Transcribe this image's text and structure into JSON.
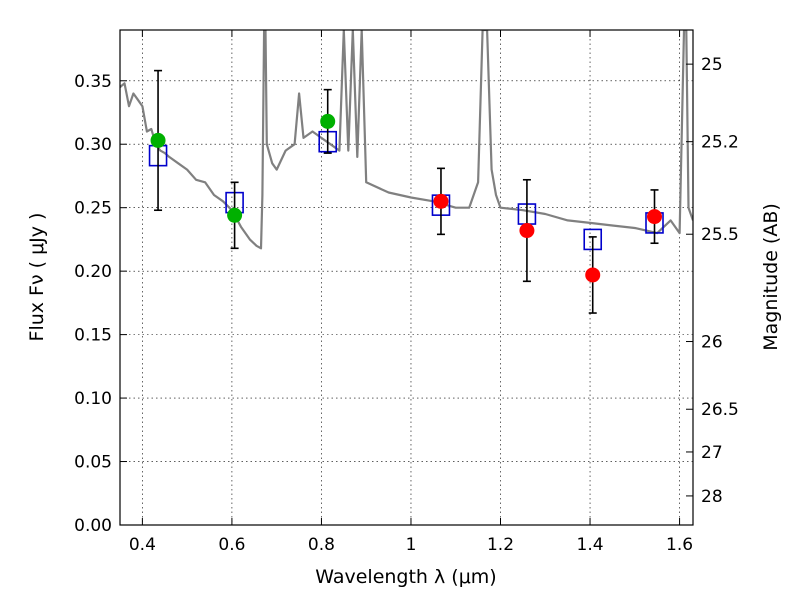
{
  "chart_data": {
    "type": "scatter",
    "xlabel": "Wavelength  λ (μm)",
    "ylabel": "Flux  Fν  ( μJy )",
    "y2label": "Magnitude (AB)",
    "xlim": [
      0.35,
      1.63
    ],
    "ylim": [
      0.0,
      0.39
    ],
    "grid": true,
    "x_ticks": [
      0.4,
      0.6,
      0.8,
      1.0,
      1.2,
      1.4,
      1.6
    ],
    "x_tick_labels": [
      "0.4",
      "0.6",
      "0.8",
      "1",
      "1.2",
      "1.4",
      "1.6"
    ],
    "y_ticks": [
      0.0,
      0.05,
      0.1,
      0.15,
      0.2,
      0.25,
      0.3,
      0.35
    ],
    "y_tick_labels": [
      "0.00",
      "0.05",
      "0.10",
      "0.15",
      "0.20",
      "0.25",
      "0.30",
      "0.35"
    ],
    "y2_ticks": [
      25,
      25.2,
      25.5,
      26,
      26.5,
      27,
      28
    ],
    "y2_tick_labels": [
      "25",
      "25.2",
      "25.5",
      "26",
      "26.5",
      "27",
      "28"
    ],
    "model_color": "#808080",
    "model_spectrum": [
      [
        0.35,
        0.345
      ],
      [
        0.36,
        0.348
      ],
      [
        0.37,
        0.33
      ],
      [
        0.38,
        0.34
      ],
      [
        0.39,
        0.335
      ],
      [
        0.4,
        0.33
      ],
      [
        0.41,
        0.31
      ],
      [
        0.42,
        0.312
      ],
      [
        0.43,
        0.3
      ],
      [
        0.44,
        0.295
      ],
      [
        0.45,
        0.293
      ],
      [
        0.46,
        0.29
      ],
      [
        0.48,
        0.285
      ],
      [
        0.5,
        0.28
      ],
      [
        0.52,
        0.272
      ],
      [
        0.54,
        0.27
      ],
      [
        0.56,
        0.26
      ],
      [
        0.58,
        0.255
      ],
      [
        0.6,
        0.248
      ],
      [
        0.62,
        0.235
      ],
      [
        0.64,
        0.225
      ],
      [
        0.655,
        0.22
      ],
      [
        0.665,
        0.218
      ],
      [
        0.668,
        0.26
      ],
      [
        0.672,
        0.39
      ],
      [
        0.675,
        0.39
      ],
      [
        0.678,
        0.3
      ],
      [
        0.69,
        0.285
      ],
      [
        0.7,
        0.28
      ],
      [
        0.72,
        0.295
      ],
      [
        0.74,
        0.3
      ],
      [
        0.75,
        0.34
      ],
      [
        0.76,
        0.305
      ],
      [
        0.78,
        0.31
      ],
      [
        0.8,
        0.305
      ],
      [
        0.82,
        0.3
      ],
      [
        0.84,
        0.295
      ],
      [
        0.85,
        0.39
      ],
      [
        0.86,
        0.295
      ],
      [
        0.87,
        0.39
      ],
      [
        0.88,
        0.29
      ],
      [
        0.89,
        0.39
      ],
      [
        0.9,
        0.27
      ],
      [
        0.95,
        0.262
      ],
      [
        1.0,
        0.258
      ],
      [
        1.05,
        0.255
      ],
      [
        1.1,
        0.25
      ],
      [
        1.13,
        0.25
      ],
      [
        1.15,
        0.27
      ],
      [
        1.16,
        0.39
      ],
      [
        1.17,
        0.39
      ],
      [
        1.18,
        0.28
      ],
      [
        1.19,
        0.26
      ],
      [
        1.2,
        0.25
      ],
      [
        1.25,
        0.248
      ],
      [
        1.3,
        0.245
      ],
      [
        1.35,
        0.24
      ],
      [
        1.4,
        0.238
      ],
      [
        1.45,
        0.236
      ],
      [
        1.5,
        0.234
      ],
      [
        1.55,
        0.23
      ],
      [
        1.58,
        0.24
      ],
      [
        1.6,
        0.23
      ],
      [
        1.61,
        0.39
      ],
      [
        1.615,
        0.39
      ],
      [
        1.62,
        0.25
      ],
      [
        1.63,
        0.24
      ]
    ],
    "series": [
      {
        "marker": "square-open",
        "color": "#0000cc",
        "points": [
          {
            "x": 0.435,
            "y": 0.291
          },
          {
            "x": 0.606,
            "y": 0.254
          },
          {
            "x": 0.814,
            "y": 0.302
          },
          {
            "x": 1.067,
            "y": 0.252
          },
          {
            "x": 1.259,
            "y": 0.245
          },
          {
            "x": 1.406,
            "y": 0.225
          },
          {
            "x": 1.544,
            "y": 0.238
          }
        ]
      },
      {
        "marker": "circle",
        "color": "#00b000",
        "points": [
          {
            "x": 0.435,
            "y": 0.303,
            "err": 0.055
          },
          {
            "x": 0.606,
            "y": 0.244,
            "err": 0.026
          },
          {
            "x": 0.814,
            "y": 0.318,
            "err": 0.025
          }
        ]
      },
      {
        "marker": "circle",
        "color": "#ff0000",
        "points": [
          {
            "x": 1.067,
            "y": 0.255,
            "err": 0.026
          },
          {
            "x": 1.259,
            "y": 0.232,
            "err": 0.04
          },
          {
            "x": 1.406,
            "y": 0.197,
            "err": 0.03
          },
          {
            "x": 1.544,
            "y": 0.243,
            "err": 0.021
          }
        ]
      }
    ]
  }
}
